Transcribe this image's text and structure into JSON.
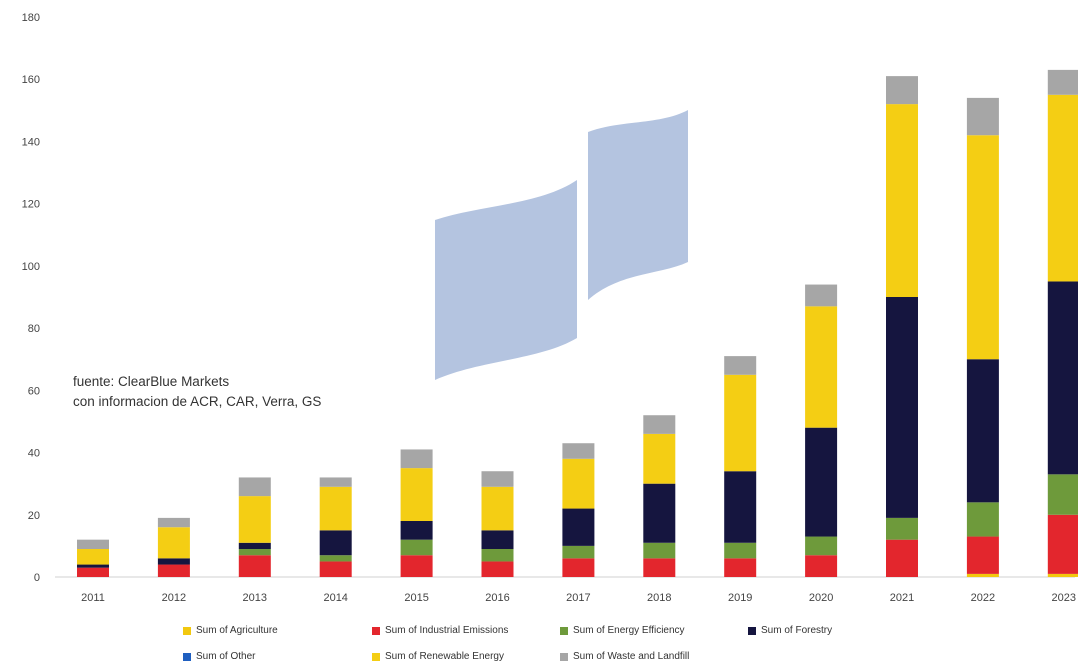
{
  "chart_data": {
    "type": "bar",
    "stacked": true,
    "categories": [
      "2011",
      "2012",
      "2013",
      "2014",
      "2015",
      "2016",
      "2017",
      "2018",
      "2019",
      "2020",
      "2021",
      "2022",
      "2023"
    ],
    "ylim": [
      0,
      180
    ],
    "yticks": [
      0,
      20,
      40,
      60,
      80,
      100,
      120,
      140,
      160,
      180
    ],
    "grid": false,
    "legend_position": "bottom",
    "series": [
      {
        "name": "Sum of Agriculture",
        "color": "#f2c80f",
        "values": [
          0,
          0,
          0,
          0,
          0,
          0,
          0,
          0,
          0,
          0,
          0,
          1,
          1
        ]
      },
      {
        "name": "Sum of Industrial Emissions",
        "color": "#e3262d",
        "values": [
          3,
          4,
          7,
          5,
          7,
          5,
          6,
          6,
          6,
          7,
          12,
          12,
          19
        ]
      },
      {
        "name": "Sum of Energy Efficiency",
        "color": "#6e9a3b",
        "values": [
          0,
          0,
          2,
          2,
          5,
          4,
          4,
          5,
          5,
          6,
          7,
          11,
          13
        ]
      },
      {
        "name": "Sum of Forestry",
        "color": "#15153f",
        "values": [
          1,
          2,
          2,
          8,
          6,
          6,
          12,
          19,
          23,
          35,
          71,
          46,
          62
        ]
      },
      {
        "name": "Sum of Other",
        "color": "#1f5fc0",
        "values": [
          0,
          0,
          0,
          0,
          0,
          0,
          0,
          0,
          0,
          0,
          0,
          0,
          0
        ]
      },
      {
        "name": "Sum of Renewable Energy",
        "color": "#f4ce14",
        "values": [
          5,
          10,
          15,
          14,
          17,
          14,
          16,
          16,
          31,
          39,
          62,
          72,
          60
        ]
      },
      {
        "name": "Sum of Waste and Landfill",
        "color": "#a6a6a6",
        "values": [
          3,
          3,
          6,
          3,
          6,
          5,
          5,
          6,
          6,
          7,
          9,
          12,
          8
        ]
      }
    ],
    "annotation": [
      "fuente: ClearBlue Markets",
      "con informacion de ACR, CAR, Verra, GS"
    ],
    "watermark_color": "#b4c4e0"
  }
}
